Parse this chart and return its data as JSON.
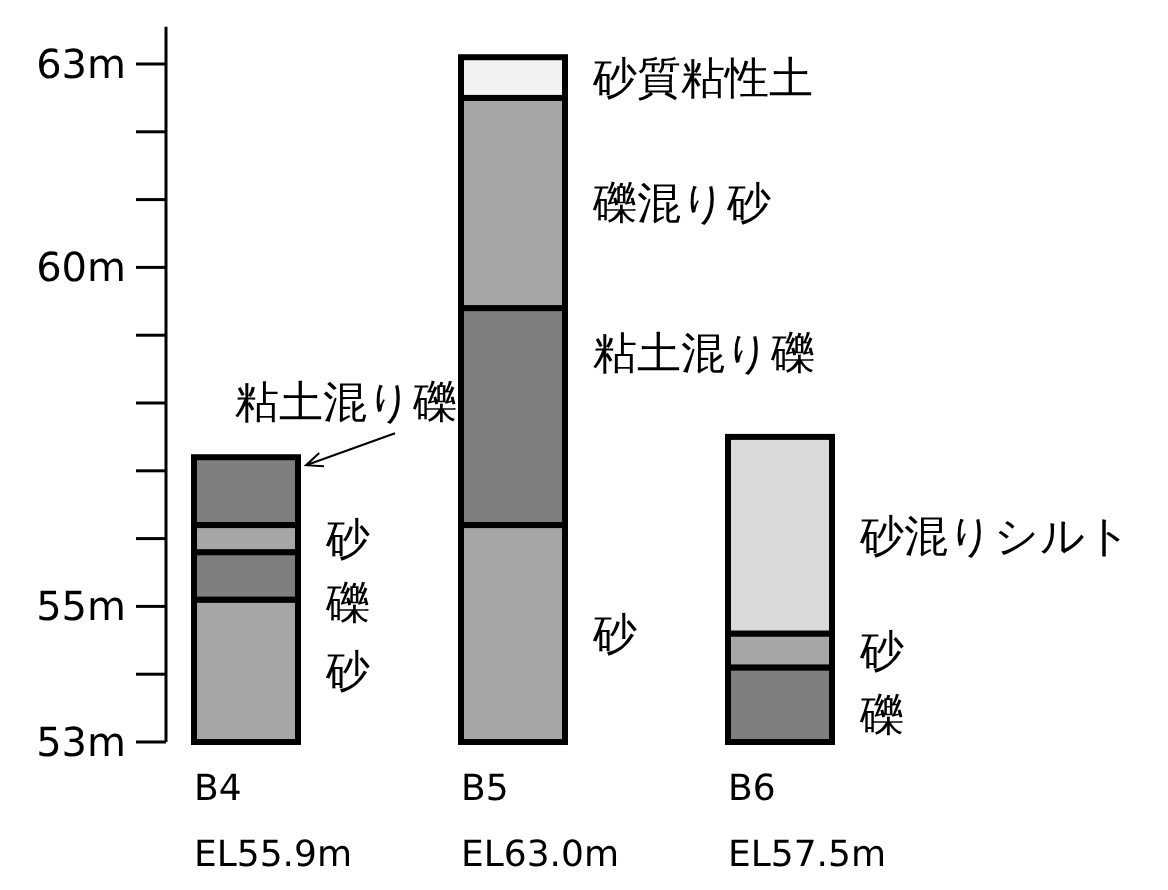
{
  "chart_data": {
    "type": "bar",
    "categories": [
      "B4\nEL55.9m",
      "B5\nEL63.0m",
      "B6\nEL57.5m"
    ],
    "series": [
      {
        "values": [
          2.1,
          3.2,
          1.1
        ],
        "base": [
          53,
          53,
          53
        ],
        "colors": [
          "#a6a6a6",
          "#a6a6a6",
          "#7f7f7f"
        ]
      },
      {
        "values": [
          0.7,
          3.2,
          0.5
        ],
        "base": [
          55.1,
          56.2,
          54.1
        ],
        "colors": [
          "#7f7f7f",
          "#7f7f7f",
          "#a6a6a6"
        ]
      },
      {
        "values": [
          0.4,
          3.1,
          2.9
        ],
        "base": [
          55.8,
          59.4,
          54.6
        ],
        "colors": [
          "#a6a6a6",
          "#a6a6a6",
          "#d9d9d9"
        ]
      },
      {
        "values": [
          1.0,
          0.6,
          null
        ],
        "base": [
          56.2,
          62.5,
          null
        ],
        "colors": [
          "#7f7f7f",
          "#f2f2f2",
          null
        ]
      }
    ],
    "annotations": [
      "砂",
      "砂",
      "礫",
      "礫",
      "粘土混り礫",
      "砂",
      "砂",
      "礫混り砂",
      "砂混りシルト",
      "粘土混り礫",
      "砂質粘性土"
    ],
    "ylim": [
      53,
      63.55
    ],
    "yticks": [
      {
        "value": 53,
        "label": "53m"
      },
      {
        "value": 54,
        "label": null
      },
      {
        "value": 55,
        "label": "55m"
      },
      {
        "value": 56,
        "label": null
      },
      {
        "value": 57,
        "label": null
      },
      {
        "value": 58,
        "label": null
      },
      {
        "value": 59,
        "label": null
      },
      {
        "value": 60,
        "label": "60m"
      },
      {
        "value": 61,
        "label": null
      },
      {
        "value": 62,
        "label": null
      },
      {
        "value": 63,
        "label": "63m"
      }
    ]
  }
}
